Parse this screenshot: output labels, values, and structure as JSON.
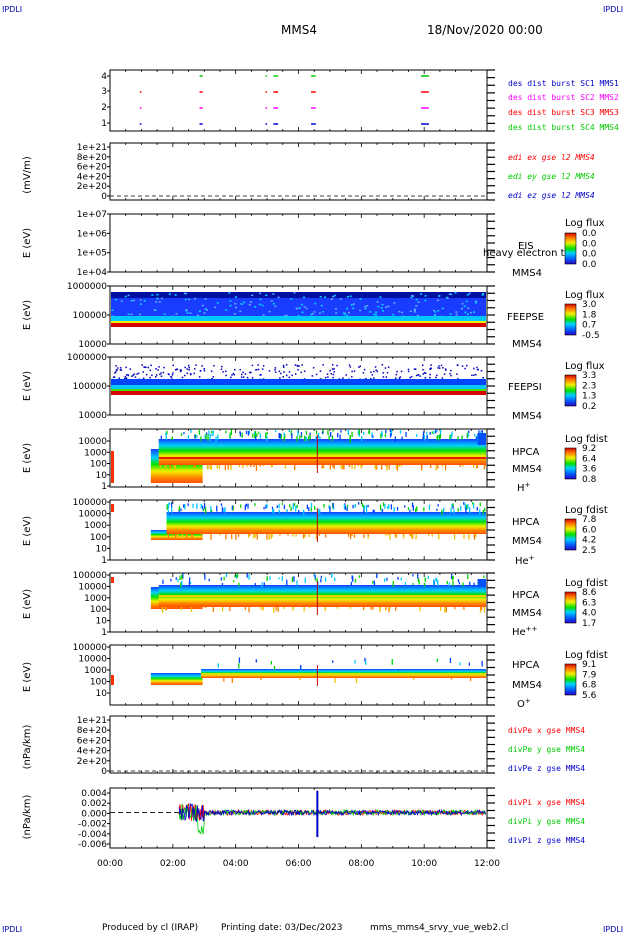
{
  "header": {
    "corner_tl": "IPDLI",
    "corner_tr": "IPDLI",
    "corner_bl": "IPDLI",
    "corner_br": "IPDLI",
    "spacecraft": "MMS4",
    "date": "18/Nov/2020 00:00"
  },
  "footer": {
    "produced_by": "Produced by cl (IRAP)",
    "printing_date": "Printing date: 03/Dec/2023",
    "filename": "mms_mms4_srvy_vue_web2.cl"
  },
  "colors": {
    "blue": "#0000cc",
    "magenta": "#ff00ff",
    "red": "#ff0000",
    "green": "#00cc00",
    "axis": "#000000"
  },
  "chart_data": [
    {
      "type": "scatter",
      "panel": "burst",
      "x": {
        "ticks": [
          "00:00",
          "02:00",
          "04:00",
          "06:00",
          "08:00",
          "10:00",
          "12:00"
        ]
      },
      "ylim": [
        0.5,
        4.5
      ],
      "yticks": [
        "4",
        "3",
        "2",
        "1"
      ],
      "series": [
        {
          "name": "des dist burst SC1 MMS1",
          "y": 1,
          "color": "#0000cc",
          "x_hours": [
            [
              0.95,
              1.0
            ],
            [
              2.85,
              2.95
            ],
            [
              4.95,
              5.0
            ],
            [
              5.2,
              5.35
            ],
            [
              6.4,
              6.55
            ],
            [
              9.9,
              10.15
            ]
          ]
        },
        {
          "name": "des dist burst SC2 MMS2",
          "y": 2,
          "color": "#ff00ff",
          "x_hours": [
            [
              0.95,
              1.0
            ],
            [
              2.85,
              2.95
            ],
            [
              4.95,
              5.0
            ],
            [
              5.2,
              5.35
            ],
            [
              6.4,
              6.55
            ],
            [
              9.9,
              10.15
            ]
          ]
        },
        {
          "name": "des dist burst SC3 MMS3",
          "y": 3,
          "color": "#ff0000",
          "x_hours": [
            [
              0.95,
              1.0
            ],
            [
              2.85,
              2.95
            ],
            [
              4.95,
              5.0
            ],
            [
              5.2,
              5.35
            ],
            [
              6.4,
              6.55
            ],
            [
              9.9,
              10.15
            ]
          ]
        },
        {
          "name": "des dist burst SC4 MMS4",
          "y": 4,
          "color": "#00cc00",
          "x_hours": [
            [
              2.85,
              2.95
            ],
            [
              4.95,
              5.0
            ],
            [
              5.2,
              5.35
            ],
            [
              6.4,
              6.55
            ],
            [
              9.9,
              10.15
            ]
          ]
        }
      ]
    },
    {
      "type": "line",
      "panel": "edi",
      "ylabel": "(mV/m)",
      "yticks": [
        "1e+21",
        "8e+20",
        "6e+20",
        "4e+20",
        "2e+20",
        "0"
      ],
      "series": [
        {
          "name": "edi ex gse l2 MMS4",
          "color": "#ff0000"
        },
        {
          "name": "edi ey gse l2 MMS4",
          "color": "#00cc00"
        },
        {
          "name": "edi ez gse l2 MMS4",
          "color": "#0000cc"
        }
      ]
    },
    {
      "type": "heatmap",
      "panel": "eis",
      "ylabel": "E (eV)",
      "yticks": [
        "1e+07",
        "1e+06",
        "1e+05",
        "1e+04"
      ],
      "label": "EIS",
      "label_overlay": "heavy electron to",
      "sc": "MMS4",
      "colorbar": {
        "title": "Log flux",
        "ticks": [
          "0.0",
          "0.0",
          "0.0",
          "0.0"
        ]
      }
    },
    {
      "type": "heatmap",
      "panel": "feeps_e",
      "ylabel": "E (eV)",
      "yticks": [
        "1000000",
        "100000",
        "10000"
      ],
      "label": "FEEPSE",
      "sc": "MMS4",
      "colorbar": {
        "title": "Log flux",
        "ticks": [
          "3.0",
          "1.8",
          "0.7",
          "-0.5"
        ]
      }
    },
    {
      "type": "heatmap",
      "panel": "feeps_i",
      "ylabel": "E (eV)",
      "yticks": [
        "1000000",
        "100000",
        "10000"
      ],
      "label": "FEEPSI",
      "sc": "MMS4",
      "colorbar": {
        "title": "Log flux",
        "ticks": [
          "3.3",
          "2.3",
          "1.3",
          "0.2"
        ]
      }
    },
    {
      "type": "heatmap",
      "panel": "hpca_h",
      "ylabel": "E (eV)",
      "yticks": [
        "10000",
        "1000",
        "100",
        "10",
        "1"
      ],
      "label": "HPCA",
      "sc": "MMS4",
      "species": "H",
      "charge": "+",
      "colorbar": {
        "title": "Log fdist",
        "ticks": [
          "9.2",
          "6.4",
          "3.6",
          "0.8"
        ]
      }
    },
    {
      "type": "heatmap",
      "panel": "hpca_he",
      "ylabel": "E (eV)",
      "yticks": [
        "100000",
        "10000",
        "1000",
        "100",
        "10",
        "1"
      ],
      "label": "HPCA",
      "sc": "MMS4",
      "species": "He",
      "charge": "+",
      "colorbar": {
        "title": "Log fdist",
        "ticks": [
          "7.8",
          "6.0",
          "4.2",
          "2.5"
        ]
      }
    },
    {
      "type": "heatmap",
      "panel": "hpca_hepp",
      "ylabel": "E (eV)",
      "yticks": [
        "100000",
        "10000",
        "1000",
        "100",
        "10",
        "1"
      ],
      "label": "HPCA",
      "sc": "MMS4",
      "species": "He",
      "charge": "++",
      "colorbar": {
        "title": "Log fdist",
        "ticks": [
          "8.6",
          "6.3",
          "4.0",
          "1.7"
        ]
      }
    },
    {
      "type": "heatmap",
      "panel": "hpca_o",
      "ylabel": "E (eV)",
      "yticks": [
        "100000",
        "10000",
        "1000",
        "100",
        "10"
      ],
      "label": "HPCA",
      "sc": "MMS4",
      "species": "O",
      "charge": "+",
      "colorbar": {
        "title": "Log fdist",
        "ticks": [
          "9.1",
          "7.9",
          "6.8",
          "5.6"
        ]
      }
    },
    {
      "type": "line",
      "panel": "divpe",
      "ylabel": "(nPa/km)",
      "yticks": [
        "1e+21",
        "8e+20",
        "6e+20",
        "4e+20",
        "2e+20",
        "0"
      ],
      "series": [
        {
          "name": "divPe x gse MMS4",
          "color": "#ff0000"
        },
        {
          "name": "divPe y gse MMS4",
          "color": "#00cc00"
        },
        {
          "name": "divPe z gse MMS4",
          "color": "#0000cc"
        }
      ]
    },
    {
      "type": "line",
      "panel": "divpi",
      "ylabel": "(nPa/km)",
      "yticks": [
        "0.004",
        "0.002",
        "0.000",
        "-0.002",
        "-0.004",
        "-0.006"
      ],
      "ylim": [
        -0.0065,
        0.0045
      ],
      "xlim_hours": [
        0,
        12
      ],
      "data_start_hours": 2.2,
      "spike_hours": 6.6,
      "spike_range": [
        -0.0045,
        0.004
      ],
      "series": [
        {
          "name": "divPi x gse MMS4",
          "color": "#ff0000"
        },
        {
          "name": "divPi y gse MMS4",
          "color": "#00cc00"
        },
        {
          "name": "divPi z gse MMS4",
          "color": "#0000cc"
        }
      ],
      "x": {
        "ticks": [
          "00:00",
          "02:00",
          "04:00",
          "06:00",
          "08:00",
          "10:00",
          "12:00"
        ]
      }
    }
  ]
}
